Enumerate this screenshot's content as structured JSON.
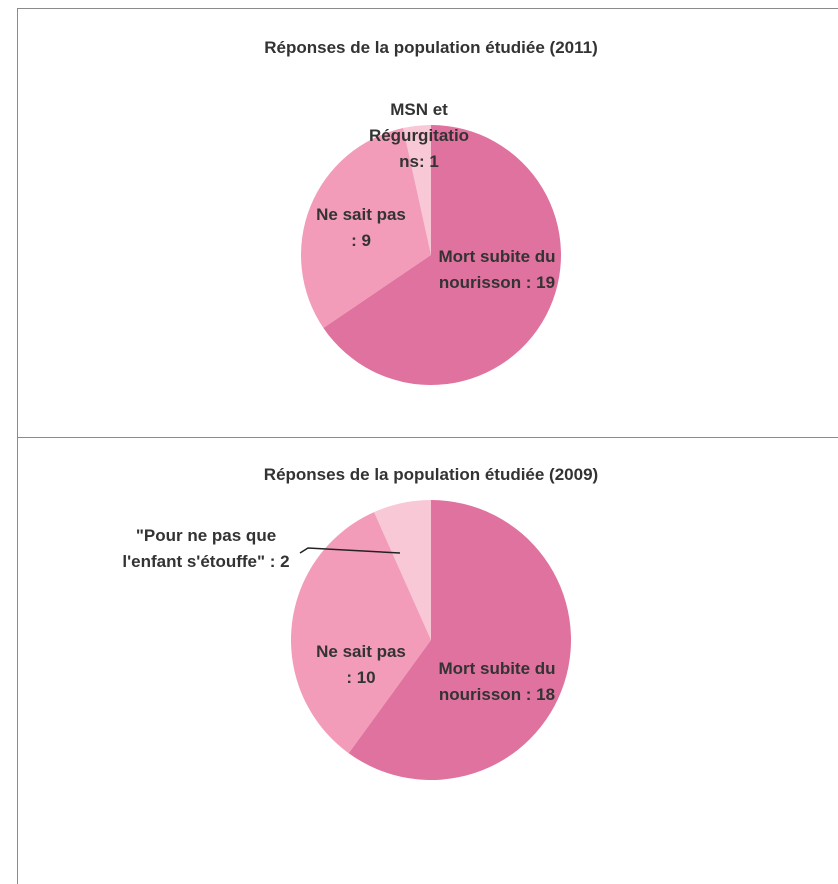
{
  "chart_data": [
    {
      "type": "pie",
      "title": "Réponses de la population étudiée (2011)",
      "values": [
        19,
        9,
        1
      ],
      "value_labels": [
        "Mort subite du nourisson : 19",
        "Ne sait pas : 9",
        "MSN et Régurgitations: 1"
      ],
      "colors": [
        "#e0729f",
        "#f29cb9",
        "#f8c8d7"
      ]
    },
    {
      "type": "pie",
      "title": "Réponses de la population étudiée (2009)",
      "values": [
        18,
        10,
        2
      ],
      "value_labels": [
        "Mort subite du nourisson : 18",
        "Ne sait pas : 10",
        "\"Pour ne pas que l'enfant s'étouffe\" : 2"
      ],
      "colors": [
        "#e0729f",
        "#f29cb9",
        "#f8c8d7"
      ]
    }
  ]
}
